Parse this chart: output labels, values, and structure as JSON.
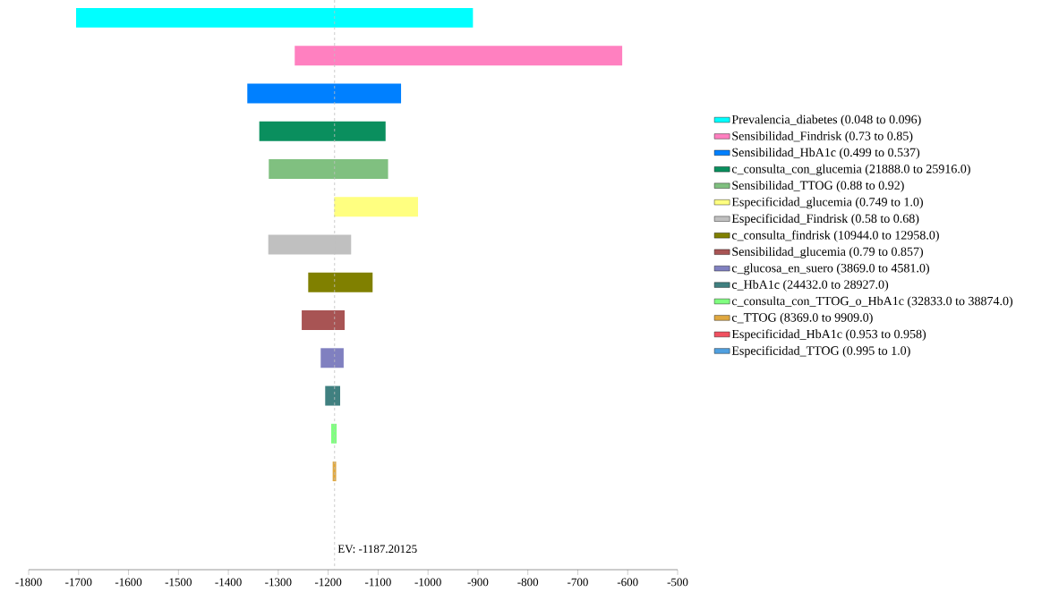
{
  "chart_data": {
    "type": "bar",
    "orientation": "horizontal",
    "categories": [
      null,
      null,
      null,
      null,
      null,
      null,
      null,
      null,
      null,
      null,
      null,
      null,
      null,
      null,
      null
    ],
    "xlim": [
      -1800,
      -500
    ],
    "xticks": [
      -1800,
      -1700,
      -1600,
      -1500,
      -1400,
      -1300,
      -1200,
      -1100,
      -1000,
      -900,
      -800,
      -700,
      -600,
      -500
    ],
    "tick_labels": "x",
    "grid": false,
    "legend": "right",
    "ref_lines": [
      {
        "axis": "x",
        "value": -1187.20125,
        "label": "EV: -1187.20125",
        "line_style": "dashed",
        "color": "#c0c0c0"
      }
    ],
    "series": [
      {
        "name": "Prevalencia_diabetes (0.048 to 0.096)",
        "color": "#00ffff",
        "base": [
          -1705,
          null,
          null,
          null,
          null,
          null,
          null,
          null,
          null,
          null,
          null,
          null,
          null,
          null,
          null
        ],
        "values": [
          795,
          null,
          null,
          null,
          null,
          null,
          null,
          null,
          null,
          null,
          null,
          null,
          null,
          null,
          null
        ]
      },
      {
        "name": "Sensibilidad_Findrisk (0.73 to 0.85)",
        "color": "#ff80c0",
        "base": [
          null,
          -1267,
          null,
          null,
          null,
          null,
          null,
          null,
          null,
          null,
          null,
          null,
          null,
          null,
          null
        ],
        "values": [
          null,
          656,
          null,
          null,
          null,
          null,
          null,
          null,
          null,
          null,
          null,
          null,
          null,
          null,
          null
        ]
      },
      {
        "name": "Sensibilidad_HbA1c (0.499 to 0.537)",
        "color": "#0080ff",
        "base": [
          null,
          null,
          -1362,
          null,
          null,
          null,
          null,
          null,
          null,
          null,
          null,
          null,
          null,
          null,
          null
        ],
        "values": [
          null,
          null,
          308,
          null,
          null,
          null,
          null,
          null,
          null,
          null,
          null,
          null,
          null,
          null,
          null
        ]
      },
      {
        "name": "c_consulta_con_glucemia (21888.0 to 25916.0)",
        "color": "#0a8f5e",
        "base": [
          null,
          null,
          null,
          -1338,
          null,
          null,
          null,
          null,
          null,
          null,
          null,
          null,
          null,
          null,
          null
        ],
        "values": [
          null,
          null,
          null,
          253,
          null,
          null,
          null,
          null,
          null,
          null,
          null,
          null,
          null,
          null,
          null
        ]
      },
      {
        "name": "Sensibilidad_TTOG (0.88 to 0.92)",
        "color": "#80c080",
        "base": [
          null,
          null,
          null,
          null,
          -1319,
          null,
          null,
          null,
          null,
          null,
          null,
          null,
          null,
          null,
          null
        ],
        "values": [
          null,
          null,
          null,
          null,
          239,
          null,
          null,
          null,
          null,
          null,
          null,
          null,
          null,
          null,
          null
        ]
      },
      {
        "name": "Especificidad_glucemia (0.749 to 1.0)",
        "color": "#ffff80",
        "base": [
          null,
          null,
          null,
          null,
          null,
          -1188,
          null,
          null,
          null,
          null,
          null,
          null,
          null,
          null,
          null
        ],
        "values": [
          null,
          null,
          null,
          null,
          null,
          168,
          null,
          null,
          null,
          null,
          null,
          null,
          null,
          null,
          null
        ]
      },
      {
        "name": "Especificidad_Findrisk (0.58 to 0.68)",
        "color": "#c0c0c0",
        "base": [
          null,
          null,
          null,
          null,
          null,
          null,
          -1320,
          null,
          null,
          null,
          null,
          null,
          null,
          null,
          null
        ],
        "values": [
          null,
          null,
          null,
          null,
          null,
          null,
          166,
          null,
          null,
          null,
          null,
          null,
          null,
          null,
          null
        ]
      },
      {
        "name": "c_consulta_findrisk (10944.0 to 12958.0)",
        "color": "#808000",
        "base": [
          null,
          null,
          null,
          null,
          null,
          null,
          null,
          -1240,
          null,
          null,
          null,
          null,
          null,
          null,
          null
        ],
        "values": [
          null,
          null,
          null,
          null,
          null,
          null,
          null,
          129,
          null,
          null,
          null,
          null,
          null,
          null,
          null
        ]
      },
      {
        "name": "Sensibilidad_glucemia (0.79 to 0.857)",
        "color": "#a85454",
        "base": [
          null,
          null,
          null,
          null,
          null,
          null,
          null,
          null,
          -1253,
          null,
          null,
          null,
          null,
          null,
          null
        ],
        "values": [
          null,
          null,
          null,
          null,
          null,
          null,
          null,
          null,
          86,
          null,
          null,
          null,
          null,
          null,
          null
        ]
      },
      {
        "name": "c_glucosa_en_suero (3869.0 to 4581.0)",
        "color": "#8080c0",
        "base": [
          null,
          null,
          null,
          null,
          null,
          null,
          null,
          null,
          null,
          -1215,
          null,
          null,
          null,
          null,
          null
        ],
        "values": [
          null,
          null,
          null,
          null,
          null,
          null,
          null,
          null,
          null,
          46,
          null,
          null,
          null,
          null,
          null
        ]
      },
      {
        "name": "c_HbA1c (24432.0 to 28927.0)",
        "color": "#408080",
        "base": [
          null,
          null,
          null,
          null,
          null,
          null,
          null,
          null,
          null,
          null,
          -1206,
          null,
          null,
          null,
          null
        ],
        "values": [
          null,
          null,
          null,
          null,
          null,
          null,
          null,
          null,
          null,
          null,
          30,
          null,
          null,
          null,
          null
        ]
      },
      {
        "name": "c_consulta_con_TTOG_o_HbA1c (32833.0 to 38874.0)",
        "color": "#80ff80",
        "base": [
          null,
          null,
          null,
          null,
          null,
          null,
          null,
          null,
          null,
          null,
          null,
          -1194,
          null,
          null,
          null
        ],
        "values": [
          null,
          null,
          null,
          null,
          null,
          null,
          null,
          null,
          null,
          null,
          null,
          11,
          null,
          null,
          null
        ]
      },
      {
        "name": "c_TTOG (8369.0 to 9909.0)",
        "color": "#e0a840",
        "base": [
          null,
          null,
          null,
          null,
          null,
          null,
          null,
          null,
          null,
          null,
          null,
          null,
          -1191,
          null,
          null
        ],
        "values": [
          null,
          null,
          null,
          null,
          null,
          null,
          null,
          null,
          null,
          null,
          null,
          null,
          7,
          null,
          null
        ]
      },
      {
        "name": "Especificidad_HbA1c (0.953 to 0.958)",
        "color": "#f05060",
        "base": [
          null,
          null,
          null,
          null,
          null,
          null,
          null,
          null,
          null,
          null,
          null,
          null,
          null,
          null,
          null
        ],
        "values": [
          null,
          null,
          null,
          null,
          null,
          null,
          null,
          null,
          null,
          null,
          null,
          null,
          null,
          null,
          null
        ]
      },
      {
        "name": "Especificidad_TTOG (0.995 to 1.0)",
        "color": "#50a0e0",
        "base": [
          null,
          null,
          null,
          null,
          null,
          null,
          null,
          null,
          null,
          null,
          null,
          null,
          null,
          null,
          null
        ],
        "values": [
          null,
          null,
          null,
          null,
          null,
          null,
          null,
          null,
          null,
          null,
          null,
          null,
          null,
          null,
          null
        ]
      }
    ]
  }
}
